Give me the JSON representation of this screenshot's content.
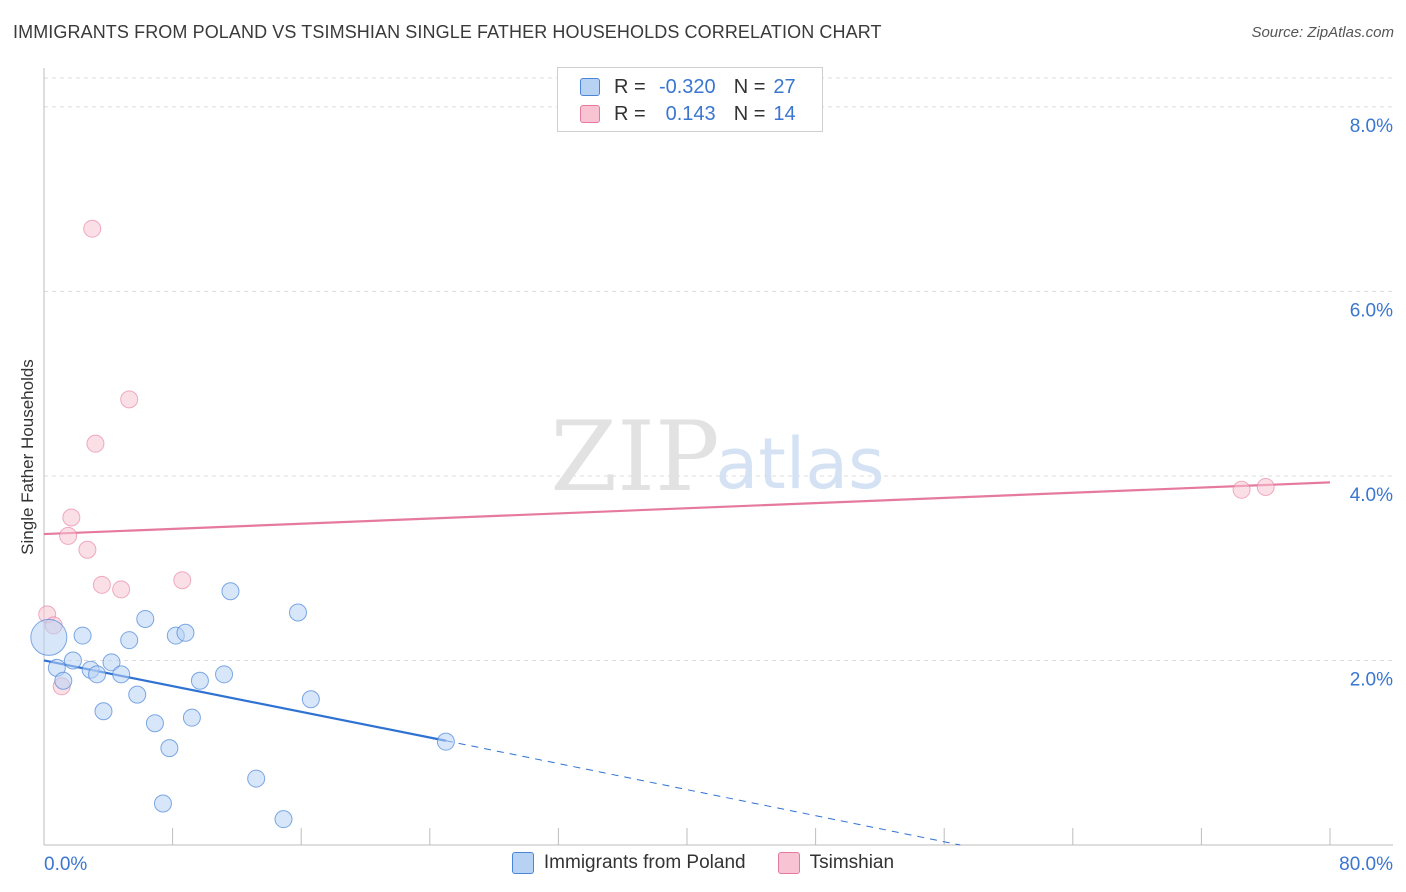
{
  "header": {
    "title": "IMMIGRANTS FROM POLAND VS TSIMSHIAN SINGLE FATHER HOUSEHOLDS CORRELATION CHART",
    "source": "Source: ZipAtlas.com"
  },
  "watermark": {
    "zip": "ZIP",
    "atlas": "atlas"
  },
  "stats": {
    "poland": {
      "r_label": "R =",
      "r_value": "-0.320",
      "n_label": "N =",
      "n_value": "27"
    },
    "tsimshian": {
      "r_label": "R =",
      "r_value": "0.143",
      "n_label": "N =",
      "n_value": "14"
    }
  },
  "legend": {
    "poland": "Immigrants from Poland",
    "tsimshian": "Tsimshian"
  },
  "chart_data": {
    "type": "scatter",
    "title": "IMMIGRANTS FROM POLAND VS TSIMSHIAN SINGLE FATHER HOUSEHOLDS CORRELATION CHART",
    "xlabel": "",
    "ylabel": "Single Father Households",
    "xlim": [
      0,
      80
    ],
    "ylim": [
      0,
      8.4
    ],
    "x_tick_labels": [
      "0.0%",
      "80.0%"
    ],
    "y_ticks": [
      2,
      4,
      6,
      8
    ],
    "y_tick_labels": [
      "2.0%",
      "4.0%",
      "6.0%",
      "8.0%"
    ],
    "grid": true,
    "colors": {
      "poland": "#4a86d8",
      "tsimshian": "#e57a9e",
      "poland_fill": "#b8d2f4",
      "tsimshian_fill": "#f8c4d3"
    },
    "series": [
      {
        "name": "Immigrants from Poland",
        "points": [
          [
            0.3,
            2.25
          ],
          [
            0.8,
            1.92
          ],
          [
            1.2,
            1.78
          ],
          [
            1.8,
            2.0
          ],
          [
            2.4,
            2.27
          ],
          [
            2.9,
            1.9
          ],
          [
            3.3,
            1.85
          ],
          [
            3.7,
            1.45
          ],
          [
            4.2,
            1.98
          ],
          [
            4.8,
            1.85
          ],
          [
            5.3,
            2.22
          ],
          [
            5.8,
            1.63
          ],
          [
            6.3,
            2.45
          ],
          [
            6.9,
            1.32
          ],
          [
            7.4,
            0.45
          ],
          [
            7.8,
            1.05
          ],
          [
            8.2,
            2.27
          ],
          [
            8.8,
            2.3
          ],
          [
            9.2,
            1.38
          ],
          [
            9.7,
            1.78
          ],
          [
            11.2,
            1.85
          ],
          [
            11.6,
            2.75
          ],
          [
            13.2,
            0.72
          ],
          [
            14.9,
            0.28
          ],
          [
            15.8,
            2.52
          ],
          [
            16.6,
            1.58
          ],
          [
            25.0,
            1.12
          ]
        ],
        "trend": {
          "x0": 0,
          "y0": 2.0,
          "x1": 25.0,
          "y1": 1.13,
          "dash_to_x": 57.0,
          "dash_to_y": 0.0
        }
      },
      {
        "name": "Tsimshian",
        "points": [
          [
            0.2,
            2.5
          ],
          [
            0.6,
            2.38
          ],
          [
            1.1,
            1.72
          ],
          [
            1.5,
            3.35
          ],
          [
            1.7,
            3.55
          ],
          [
            2.7,
            3.2
          ],
          [
            3.0,
            6.68
          ],
          [
            3.2,
            4.35
          ],
          [
            3.6,
            2.82
          ],
          [
            4.8,
            2.77
          ],
          [
            5.3,
            4.83
          ],
          [
            8.6,
            2.87
          ],
          [
            74.5,
            3.85
          ],
          [
            76.0,
            3.88
          ]
        ],
        "trend": {
          "x0": 0,
          "y0": 3.37,
          "x1": 80,
          "y1": 3.93
        }
      }
    ]
  }
}
